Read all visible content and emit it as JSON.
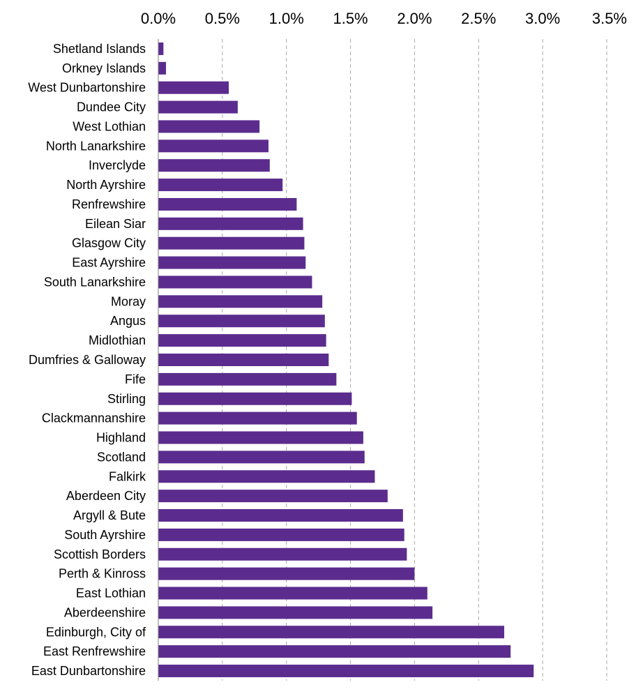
{
  "chart_data": {
    "type": "bar",
    "orientation": "horizontal",
    "xlim": [
      0,
      3.5
    ],
    "x_ticks": [
      "0.0%",
      "0.5%",
      "1.0%",
      "1.5%",
      "2.0%",
      "2.5%",
      "3.0%",
      "3.5%"
    ],
    "x_axis_position": "top",
    "grid": true,
    "bar_color": "#5b2c8e",
    "categories": [
      "Shetland Islands",
      "Orkney Islands",
      "West Dunbartonshire",
      "Dundee City",
      "West Lothian",
      "North Lanarkshire",
      "Inverclyde",
      "North Ayrshire",
      "Renfrewshire",
      "Eilean Siar",
      "Glasgow City",
      "East Ayrshire",
      "South Lanarkshire",
      "Moray",
      "Angus",
      "Midlothian",
      "Dumfries & Galloway",
      "Fife",
      "Stirling",
      "Clackmannanshire",
      "Highland",
      "Scotland",
      "Falkirk",
      "Aberdeen City",
      "Argyll & Bute",
      "South Ayrshire",
      "Scottish Borders",
      "Perth & Kinross",
      "East Lothian",
      "Aberdeenshire",
      "Edinburgh, City of",
      "East Renfrewshire",
      "East Dunbartonshire"
    ],
    "values": [
      0.04,
      0.06,
      0.55,
      0.62,
      0.79,
      0.86,
      0.87,
      0.97,
      1.08,
      1.13,
      1.14,
      1.15,
      1.2,
      1.28,
      1.3,
      1.31,
      1.33,
      1.39,
      1.51,
      1.55,
      1.6,
      1.61,
      1.69,
      1.79,
      1.91,
      1.92,
      1.94,
      2.0,
      2.1,
      2.14,
      2.7,
      2.75,
      2.93
    ]
  }
}
